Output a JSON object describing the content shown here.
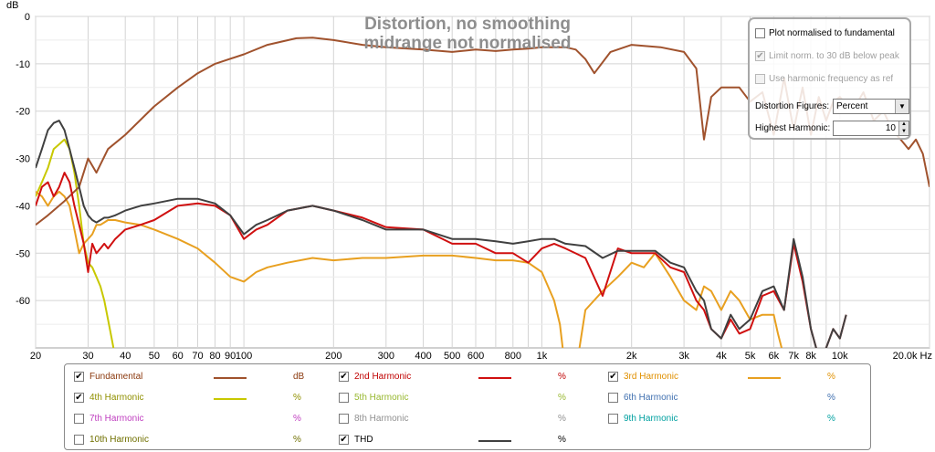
{
  "chart_data": {
    "type": "line",
    "title": "Distortion, no smoothing",
    "subtitle": "midrange not normalised",
    "ylabel": "dB",
    "xlabel": "",
    "x_unit": "Hz",
    "xscale": "log",
    "xlim": [
      20,
      20000
    ],
    "ylim": [
      -70,
      0
    ],
    "grid": true,
    "x_ticks": [
      {
        "value": 20,
        "label": "20"
      },
      {
        "value": 30,
        "label": "30"
      },
      {
        "value": 40,
        "label": "40"
      },
      {
        "value": 50,
        "label": "50"
      },
      {
        "value": 60,
        "label": "60"
      },
      {
        "value": 70,
        "label": "70"
      },
      {
        "value": 80,
        "label": "80"
      },
      {
        "value": 90,
        "label": "90"
      },
      {
        "value": 100,
        "label": "100"
      },
      {
        "value": 200,
        "label": "200"
      },
      {
        "value": 300,
        "label": "300"
      },
      {
        "value": 400,
        "label": "400"
      },
      {
        "value": 500,
        "label": "500"
      },
      {
        "value": 600,
        "label": "600"
      },
      {
        "value": 800,
        "label": "800"
      },
      {
        "value": 1000,
        "label": "1k"
      },
      {
        "value": 2000,
        "label": "2k"
      },
      {
        "value": 3000,
        "label": "3k"
      },
      {
        "value": 4000,
        "label": "4k"
      },
      {
        "value": 5000,
        "label": "5k"
      },
      {
        "value": 6000,
        "label": "6k"
      },
      {
        "value": 7000,
        "label": "7k"
      },
      {
        "value": 8000,
        "label": "8k"
      },
      {
        "value": 10000,
        "label": "10k"
      },
      {
        "value": 20000,
        "label": "20.0k Hz"
      }
    ],
    "y_ticks": [
      {
        "value": 0,
        "label": "0"
      },
      {
        "value": -10,
        "label": "-10"
      },
      {
        "value": -20,
        "label": "-20"
      },
      {
        "value": -30,
        "label": "-30"
      },
      {
        "value": -40,
        "label": "-40"
      },
      {
        "value": -50,
        "label": "-50"
      },
      {
        "value": -60,
        "label": "-60"
      }
    ],
    "series": [
      {
        "name": "Fundamental",
        "unit": "dB",
        "color": "#a0522d",
        "visible": true,
        "x": [
          20,
          22,
          25,
          28,
          30,
          32,
          35,
          40,
          50,
          60,
          70,
          80,
          100,
          120,
          150,
          170,
          200,
          250,
          300,
          400,
          500,
          600,
          700,
          800,
          900,
          1000,
          1100,
          1200,
          1300,
          1400,
          1500,
          1700,
          2000,
          2500,
          3000,
          3300,
          3500,
          3700,
          4000,
          4300,
          4600,
          5000,
          5500,
          6000,
          6500,
          7000,
          7500,
          8000,
          8500,
          9000,
          9500,
          10000,
          11000,
          12000,
          13000,
          14000,
          15000,
          16000,
          17000,
          18000,
          19000,
          20000
        ],
        "y": [
          -44,
          -42,
          -39,
          -36,
          -30,
          -33,
          -28,
          -25,
          -19,
          -15,
          -12,
          -10,
          -8,
          -6,
          -4.6,
          -4.5,
          -5,
          -6,
          -6.5,
          -7,
          -7.5,
          -7,
          -7.3,
          -7,
          -6.8,
          -6.5,
          -6.5,
          -6.5,
          -7,
          -9,
          -12,
          -7.5,
          -6,
          -6.5,
          -7.5,
          -11,
          -26,
          -17,
          -15,
          -15,
          -15,
          -18,
          -16,
          -25,
          -13,
          -24,
          -15,
          -25,
          -17,
          -22,
          -18,
          -17,
          -20,
          -16,
          -22,
          -20,
          -24,
          -26,
          -28,
          -26,
          -29,
          -36
        ]
      },
      {
        "name": "2nd Harmonic",
        "unit": "%",
        "color": "#d01010",
        "visible": true,
        "x": [
          20,
          21,
          22,
          23,
          24,
          25,
          26,
          27,
          28,
          29,
          30,
          31,
          32,
          33,
          34,
          35,
          37,
          40,
          45,
          50,
          60,
          70,
          80,
          90,
          100,
          110,
          120,
          140,
          170,
          200,
          250,
          300,
          400,
          500,
          600,
          700,
          800,
          900,
          1000,
          1100,
          1200,
          1400,
          1600,
          1800,
          2000,
          2400,
          2700,
          3000,
          3300,
          3500,
          3700,
          4000,
          4300,
          4600,
          5000,
          5500,
          6000,
          6500,
          7000,
          7500,
          8000,
          8500,
          9000,
          9500,
          10000,
          10500
        ],
        "y": [
          -40,
          -36,
          -35,
          -38,
          -36,
          -33,
          -35,
          -40,
          -44,
          -48,
          -54,
          -48,
          -50,
          -49,
          -48,
          -49,
          -47,
          -45,
          -44,
          -43,
          -40,
          -39.5,
          -40,
          -42,
          -47,
          -45,
          -44,
          -41,
          -40,
          -41,
          -42.5,
          -44.5,
          -45,
          -48,
          -48,
          -50,
          -50,
          -52,
          -49,
          -48,
          -49,
          -51,
          -59,
          -49,
          -50,
          -50,
          -53,
          -54,
          -60,
          -62,
          -66,
          -68,
          -64,
          -67,
          -66,
          -59,
          -58,
          -62,
          -48,
          -56,
          -66,
          -72,
          -70,
          -66,
          -68,
          -63
        ]
      },
      {
        "name": "3rd Harmonic",
        "unit": "%",
        "color": "#e8a020",
        "visible": true,
        "x": [
          20,
          21,
          22,
          23,
          24,
          25,
          26,
          27,
          28,
          29,
          30,
          31,
          32,
          33,
          34,
          35,
          37,
          40,
          45,
          50,
          60,
          70,
          80,
          90,
          100,
          110,
          120,
          140,
          170,
          200,
          250,
          300,
          400,
          500,
          600,
          700,
          800,
          900,
          1000,
          1100,
          1150,
          1200,
          1300,
          1400,
          1600,
          1800,
          2000,
          2200,
          2400,
          2700,
          3000,
          3300,
          3500,
          3700,
          4000,
          4300,
          4600,
          5000,
          5500,
          6000,
          6200,
          6500
        ],
        "y": [
          -37,
          -38,
          -40,
          -38,
          -37,
          -38,
          -40,
          -45,
          -50,
          -48,
          -47,
          -46,
          -44,
          -44,
          -43.5,
          -43,
          -43,
          -43.5,
          -44,
          -45,
          -47,
          -49,
          -52,
          -55,
          -56,
          -54,
          -53,
          -52,
          -51,
          -51.5,
          -51,
          -51,
          -50.5,
          -50.5,
          -51,
          -51.5,
          -51.5,
          -52,
          -54,
          -60,
          -65,
          -75,
          -75,
          -62,
          -58,
          -55,
          -52,
          -53,
          -50,
          -55,
          -60,
          -62,
          -57,
          -58,
          -62,
          -58,
          -60,
          -64,
          -63,
          -63,
          -67,
          -72
        ]
      },
      {
        "name": "4th Harmonic",
        "unit": "%",
        "color": "#c8c800",
        "visible": true,
        "x": [
          20,
          21,
          22,
          23,
          24,
          25,
          26,
          27,
          28,
          29,
          30,
          31,
          32,
          33,
          34,
          35,
          36,
          37
        ],
        "y": [
          -38,
          -35,
          -32,
          -28,
          -27,
          -26,
          -28,
          -33,
          -40,
          -48,
          -52,
          -53,
          -55,
          -57,
          -60,
          -64,
          -68,
          -72
        ]
      },
      {
        "name": "5th Harmonic",
        "unit": "%",
        "color": "#a8c838",
        "visible": false,
        "x": [],
        "y": []
      },
      {
        "name": "6th Harmonic",
        "unit": "%",
        "color": "#4080c0",
        "visible": false,
        "x": [],
        "y": []
      },
      {
        "name": "7th Harmonic",
        "unit": "%",
        "color": "#d040d0",
        "visible": false,
        "x": [],
        "y": []
      },
      {
        "name": "8th Harmonic",
        "unit": "%",
        "color": "#909090",
        "visible": false,
        "x": [],
        "y": []
      },
      {
        "name": "9th Harmonic",
        "unit": "%",
        "color": "#00a8a8",
        "visible": false,
        "x": [],
        "y": []
      },
      {
        "name": "10th Harmonic",
        "unit": "%",
        "color": "#808000",
        "visible": false,
        "x": [],
        "y": []
      },
      {
        "name": "THD",
        "unit": "%",
        "color": "#404040",
        "visible": true,
        "x": [
          20,
          21,
          22,
          23,
          24,
          25,
          26,
          27,
          28,
          29,
          30,
          31,
          32,
          33,
          34,
          35,
          37,
          40,
          45,
          50,
          60,
          70,
          80,
          90,
          100,
          110,
          120,
          140,
          170,
          200,
          250,
          300,
          400,
          500,
          600,
          700,
          800,
          900,
          1000,
          1100,
          1200,
          1400,
          1600,
          1800,
          2000,
          2400,
          2700,
          3000,
          3300,
          3500,
          3700,
          4000,
          4300,
          4600,
          5000,
          5500,
          6000,
          6500,
          7000,
          7500,
          8000,
          8500,
          9000,
          9500,
          10000,
          10500
        ],
        "y": [
          -32,
          -28,
          -24,
          -22.5,
          -22,
          -24,
          -28,
          -32,
          -36,
          -40,
          -42,
          -43,
          -43.5,
          -43,
          -42.5,
          -42.5,
          -42,
          -41,
          -40,
          -39.5,
          -38.5,
          -38.5,
          -39.5,
          -42,
          -46,
          -44,
          -43,
          -41,
          -40,
          -41,
          -43,
          -45,
          -45,
          -47,
          -47,
          -47.5,
          -48,
          -47.5,
          -47,
          -47,
          -48,
          -48.5,
          -51,
          -49.5,
          -49.5,
          -49.5,
          -52,
          -53,
          -58,
          -60,
          -66,
          -68,
          -63,
          -66,
          -64,
          -58,
          -57,
          -62,
          -47,
          -55,
          -66,
          -72,
          -70,
          -66,
          -68,
          -63
        ]
      }
    ]
  },
  "options": {
    "plot_normalised_label": "Plot normalised to fundamental",
    "plot_normalised_checked": false,
    "limit_norm_label": "Limit norm. to 30 dB below peak",
    "limit_norm_checked": true,
    "use_harmonic_label": "Use harmonic frequency as ref",
    "use_harmonic_checked": false,
    "distortion_figures_label": "Distortion Figures:",
    "distortion_figures_value": "Percent",
    "highest_harmonic_label": "Highest Harmonic:",
    "highest_harmonic_value": "10"
  },
  "legend": {
    "items": [
      {
        "label": "Fundamental",
        "unit": "dB",
        "checked": true,
        "color": "#a0522d",
        "text_color": "#8b3a0f"
      },
      {
        "label": "2nd Harmonic",
        "unit": "%",
        "checked": true,
        "color": "#d01010",
        "text_color": "#c00000"
      },
      {
        "label": "3rd Harmonic",
        "unit": "%",
        "checked": true,
        "color": "#e8a020",
        "text_color": "#e09000"
      },
      {
        "label": "4th Harmonic",
        "unit": "%",
        "checked": true,
        "color": "#c8c800",
        "text_color": "#909000"
      },
      {
        "label": "5th Harmonic",
        "unit": "%",
        "checked": false,
        "color": "",
        "text_color": "#98b830"
      },
      {
        "label": "6th Harmonic",
        "unit": "%",
        "checked": false,
        "color": "",
        "text_color": "#4070b0"
      },
      {
        "label": "7th Harmonic",
        "unit": "%",
        "checked": false,
        "color": "",
        "text_color": "#c040c0"
      },
      {
        "label": "8th Harmonic",
        "unit": "%",
        "checked": false,
        "color": "",
        "text_color": "#909090"
      },
      {
        "label": "9th Harmonic",
        "unit": "%",
        "checked": false,
        "color": "",
        "text_color": "#00a0a0"
      },
      {
        "label": "10th Harmonic",
        "unit": "%",
        "checked": false,
        "color": "",
        "text_color": "#707000"
      },
      {
        "label": "THD",
        "unit": "%",
        "checked": true,
        "color": "#404040",
        "text_color": "#000000"
      }
    ]
  }
}
